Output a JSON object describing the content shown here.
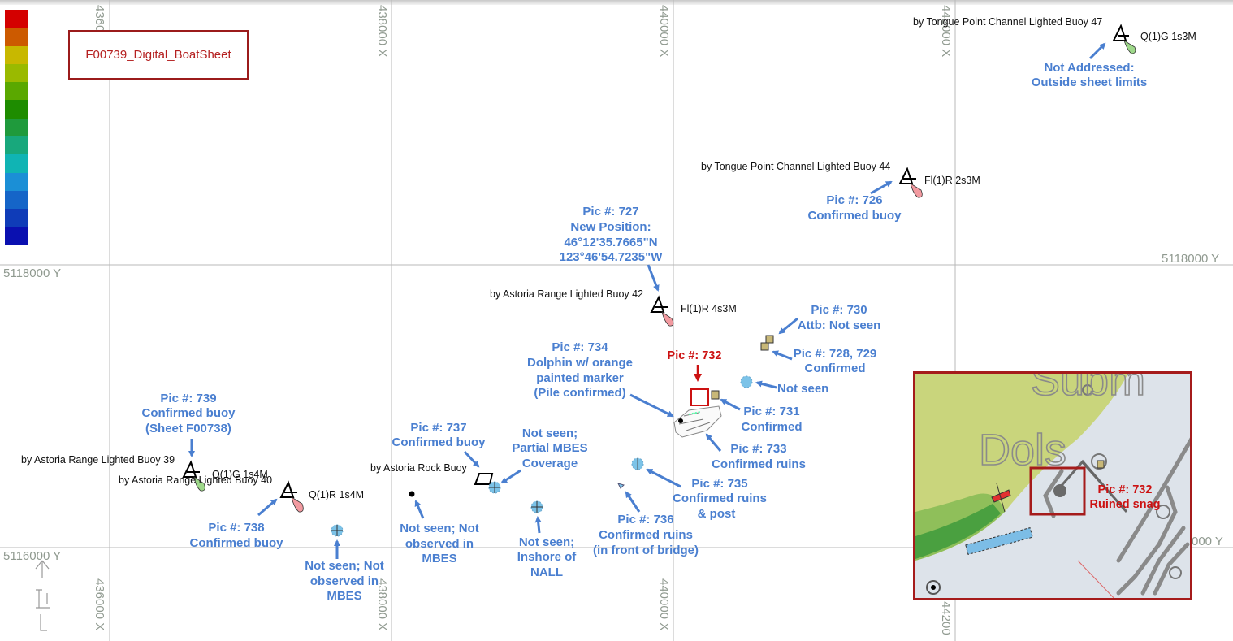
{
  "sheet_title": "F00739_Digital_BoatSheet",
  "legend_colors": [
    "#d40000",
    "#cc5a00",
    "#c8b800",
    "#9aba00",
    "#5aa800",
    "#1e8c00",
    "#1f9a3c",
    "#18a87c",
    "#10b4b4",
    "#1b8fd6",
    "#1565c8",
    "#0f3cb8",
    "#0a10b0"
  ],
  "grid": {
    "x_labels": [
      "436000 X",
      "438000 X",
      "440000 X",
      "442000 X"
    ],
    "x_labels_bottom": [
      "436000 X",
      "438000 X",
      "440000 X",
      "44200"
    ],
    "y_labels_left": [
      "5118000 Y",
      "5116000 Y"
    ],
    "y_labels_right": [
      "5118000 Y",
      "000 Y"
    ]
  },
  "buoys": [
    {
      "name": "by Tongue Point Channel Lighted Buoy 47",
      "light": "Q(1)G 1s3M",
      "color": "green"
    },
    {
      "name": "by Tongue Point Channel Lighted Buoy 44",
      "light": "Fl(1)R 2s3M",
      "color": "red"
    },
    {
      "name": "by Astoria Range Lighted Buoy 42",
      "light": "Fl(1)R 4s3M",
      "color": "red"
    },
    {
      "name": "by Astoria Range Lighted Buoy 39",
      "light": "Q(1)G 1s4M",
      "color": "green"
    },
    {
      "name": "by Astoria Range Lighted Buoy 40",
      "light": "Q(1)R 1s4M",
      "color": "red"
    },
    {
      "name": "by Astoria Rock Buoy",
      "light": "",
      "color": "black"
    }
  ],
  "annotations": {
    "a47": [
      "Not Addressed:",
      "Outside sheet limits"
    ],
    "a726": [
      "Pic #: 726",
      "Confirmed buoy"
    ],
    "a727": [
      "Pic #: 727",
      "New Position:",
      "46°12'35.7665\"N",
      "123°46'54.7235\"W"
    ],
    "a730": [
      "Pic #: 730",
      "Attb: Not seen"
    ],
    "a728": [
      "Pic #: 728, 729",
      "Confirmed"
    ],
    "a732": "Pic #: 732",
    "a734": [
      "Pic #: 734",
      "Dolphin w/ orange",
      "painted marker",
      "(Pile confirmed)"
    ],
    "not_seen": "Not seen",
    "a731": [
      "Pic #: 731",
      "Confirmed"
    ],
    "a733": [
      "Pic #: 733",
      "Confirmed ruins"
    ],
    "a735": [
      "Pic #: 735",
      "Confirmed ruins",
      "& post"
    ],
    "a736": [
      "Pic #: 736",
      "Confirmed ruins",
      "(in front of bridge)"
    ],
    "a739": [
      "Pic #: 739",
      "Confirmed buoy",
      "(Sheet F00738)"
    ],
    "a737": [
      "Pic #: 737",
      "Confirmed buoy"
    ],
    "partial": [
      "Not seen;",
      "Partial MBES",
      "Coverage"
    ],
    "a738": [
      "Pic #: 738",
      "Confirmed buoy"
    ],
    "nsmbes1": [
      "Not seen; Not",
      "observed in",
      "MBES"
    ],
    "nsmbes2": [
      "Not seen; Not",
      "observed in",
      "MBES"
    ],
    "nall": [
      "Not seen;",
      "Inshore of",
      "NALL"
    ]
  },
  "inset": {
    "place_text": "Dols",
    "place_text_partial": "Subm",
    "caption": [
      "Pic #: 732",
      "Ruined snag"
    ]
  }
}
